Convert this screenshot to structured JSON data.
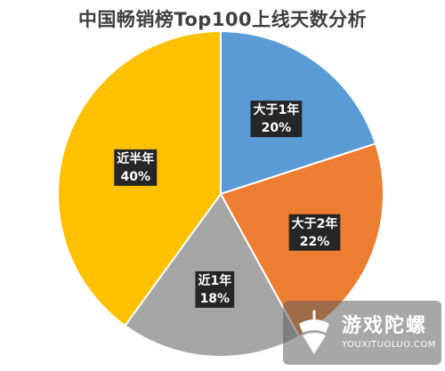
{
  "chart_data": {
    "type": "pie",
    "title": "中国畅销榜Top100上线天数分析",
    "slices": [
      {
        "label": "大于1年",
        "value": 20,
        "value_label": "20%",
        "color": "#5b9bd5"
      },
      {
        "label": "大于2年",
        "value": 22,
        "value_label": "22%",
        "color": "#ed7d31"
      },
      {
        "label": "近1年",
        "value": 18,
        "value_label": "18%",
        "color": "#a5a5a5"
      },
      {
        "label": "近半年",
        "value": 40,
        "value_label": "40%",
        "color": "#ffc000"
      }
    ],
    "start_angle": "12 o'clock",
    "direction": "clockwise",
    "slice_border_color": "#ffffff",
    "label_style": {
      "background": "#262626",
      "text_color": "#ffffff"
    }
  },
  "watermark": {
    "name": "游戏陀螺",
    "url": "YOUXITUOLUO.COM"
  }
}
